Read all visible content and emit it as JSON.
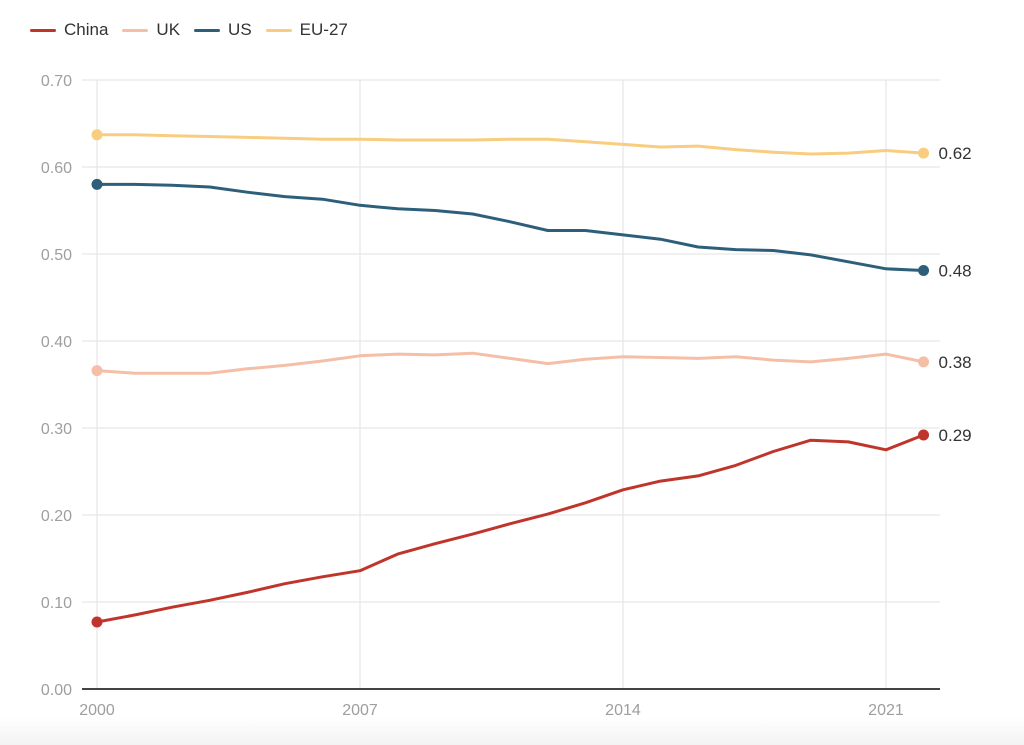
{
  "chart_data": {
    "type": "line",
    "title": "",
    "xlabel": "",
    "ylabel": "",
    "ylim": [
      0,
      0.7
    ],
    "xlim": [
      2000,
      2022
    ],
    "grid": true,
    "legend_position": "top-left",
    "y_ticks": [
      "0.00",
      "0.10",
      "0.20",
      "0.30",
      "0.40",
      "0.50",
      "0.60",
      "0.70"
    ],
    "y_tick_values": [
      0,
      0.1,
      0.2,
      0.3,
      0.4,
      0.5,
      0.6,
      0.7
    ],
    "x_ticks": [
      "2000",
      "2007",
      "2014",
      "2021"
    ],
    "x_tick_values": [
      2000,
      2007,
      2014,
      2021
    ],
    "x": [
      2000,
      2001,
      2002,
      2003,
      2004,
      2005,
      2006,
      2007,
      2008,
      2009,
      2010,
      2011,
      2012,
      2013,
      2014,
      2015,
      2016,
      2017,
      2018,
      2019,
      2020,
      2021,
      2022
    ],
    "series": [
      {
        "name": "China",
        "color": "#c0352b",
        "end_label": "0.29",
        "values": [
          0.077,
          0.085,
          0.094,
          0.102,
          0.111,
          0.121,
          0.129,
          0.136,
          0.155,
          0.167,
          0.178,
          0.19,
          0.201,
          0.214,
          0.229,
          0.239,
          0.245,
          0.257,
          0.273,
          0.286,
          0.284,
          0.275,
          0.292
        ]
      },
      {
        "name": "UK",
        "color": "#f4bfa6",
        "end_label": "0.38",
        "values": [
          0.366,
          0.363,
          0.363,
          0.363,
          0.368,
          0.372,
          0.377,
          0.383,
          0.385,
          0.384,
          0.386,
          0.38,
          0.374,
          0.379,
          0.382,
          0.381,
          0.38,
          0.382,
          0.378,
          0.376,
          0.38,
          0.385,
          0.376
        ]
      },
      {
        "name": "US",
        "color": "#2e5f7a",
        "end_label": "0.48",
        "values": [
          0.58,
          0.58,
          0.579,
          0.577,
          0.571,
          0.566,
          0.563,
          0.556,
          0.552,
          0.55,
          0.546,
          0.537,
          0.527,
          0.527,
          0.522,
          0.517,
          0.508,
          0.505,
          0.504,
          0.499,
          0.491,
          0.483,
          0.481
        ]
      },
      {
        "name": "EU-27",
        "color": "#f8cd7f",
        "end_label": "0.62",
        "values": [
          0.637,
          0.637,
          0.636,
          0.635,
          0.634,
          0.633,
          0.632,
          0.632,
          0.631,
          0.631,
          0.631,
          0.632,
          0.632,
          0.629,
          0.626,
          0.623,
          0.624,
          0.62,
          0.617,
          0.615,
          0.616,
          0.619,
          0.616
        ]
      }
    ]
  }
}
